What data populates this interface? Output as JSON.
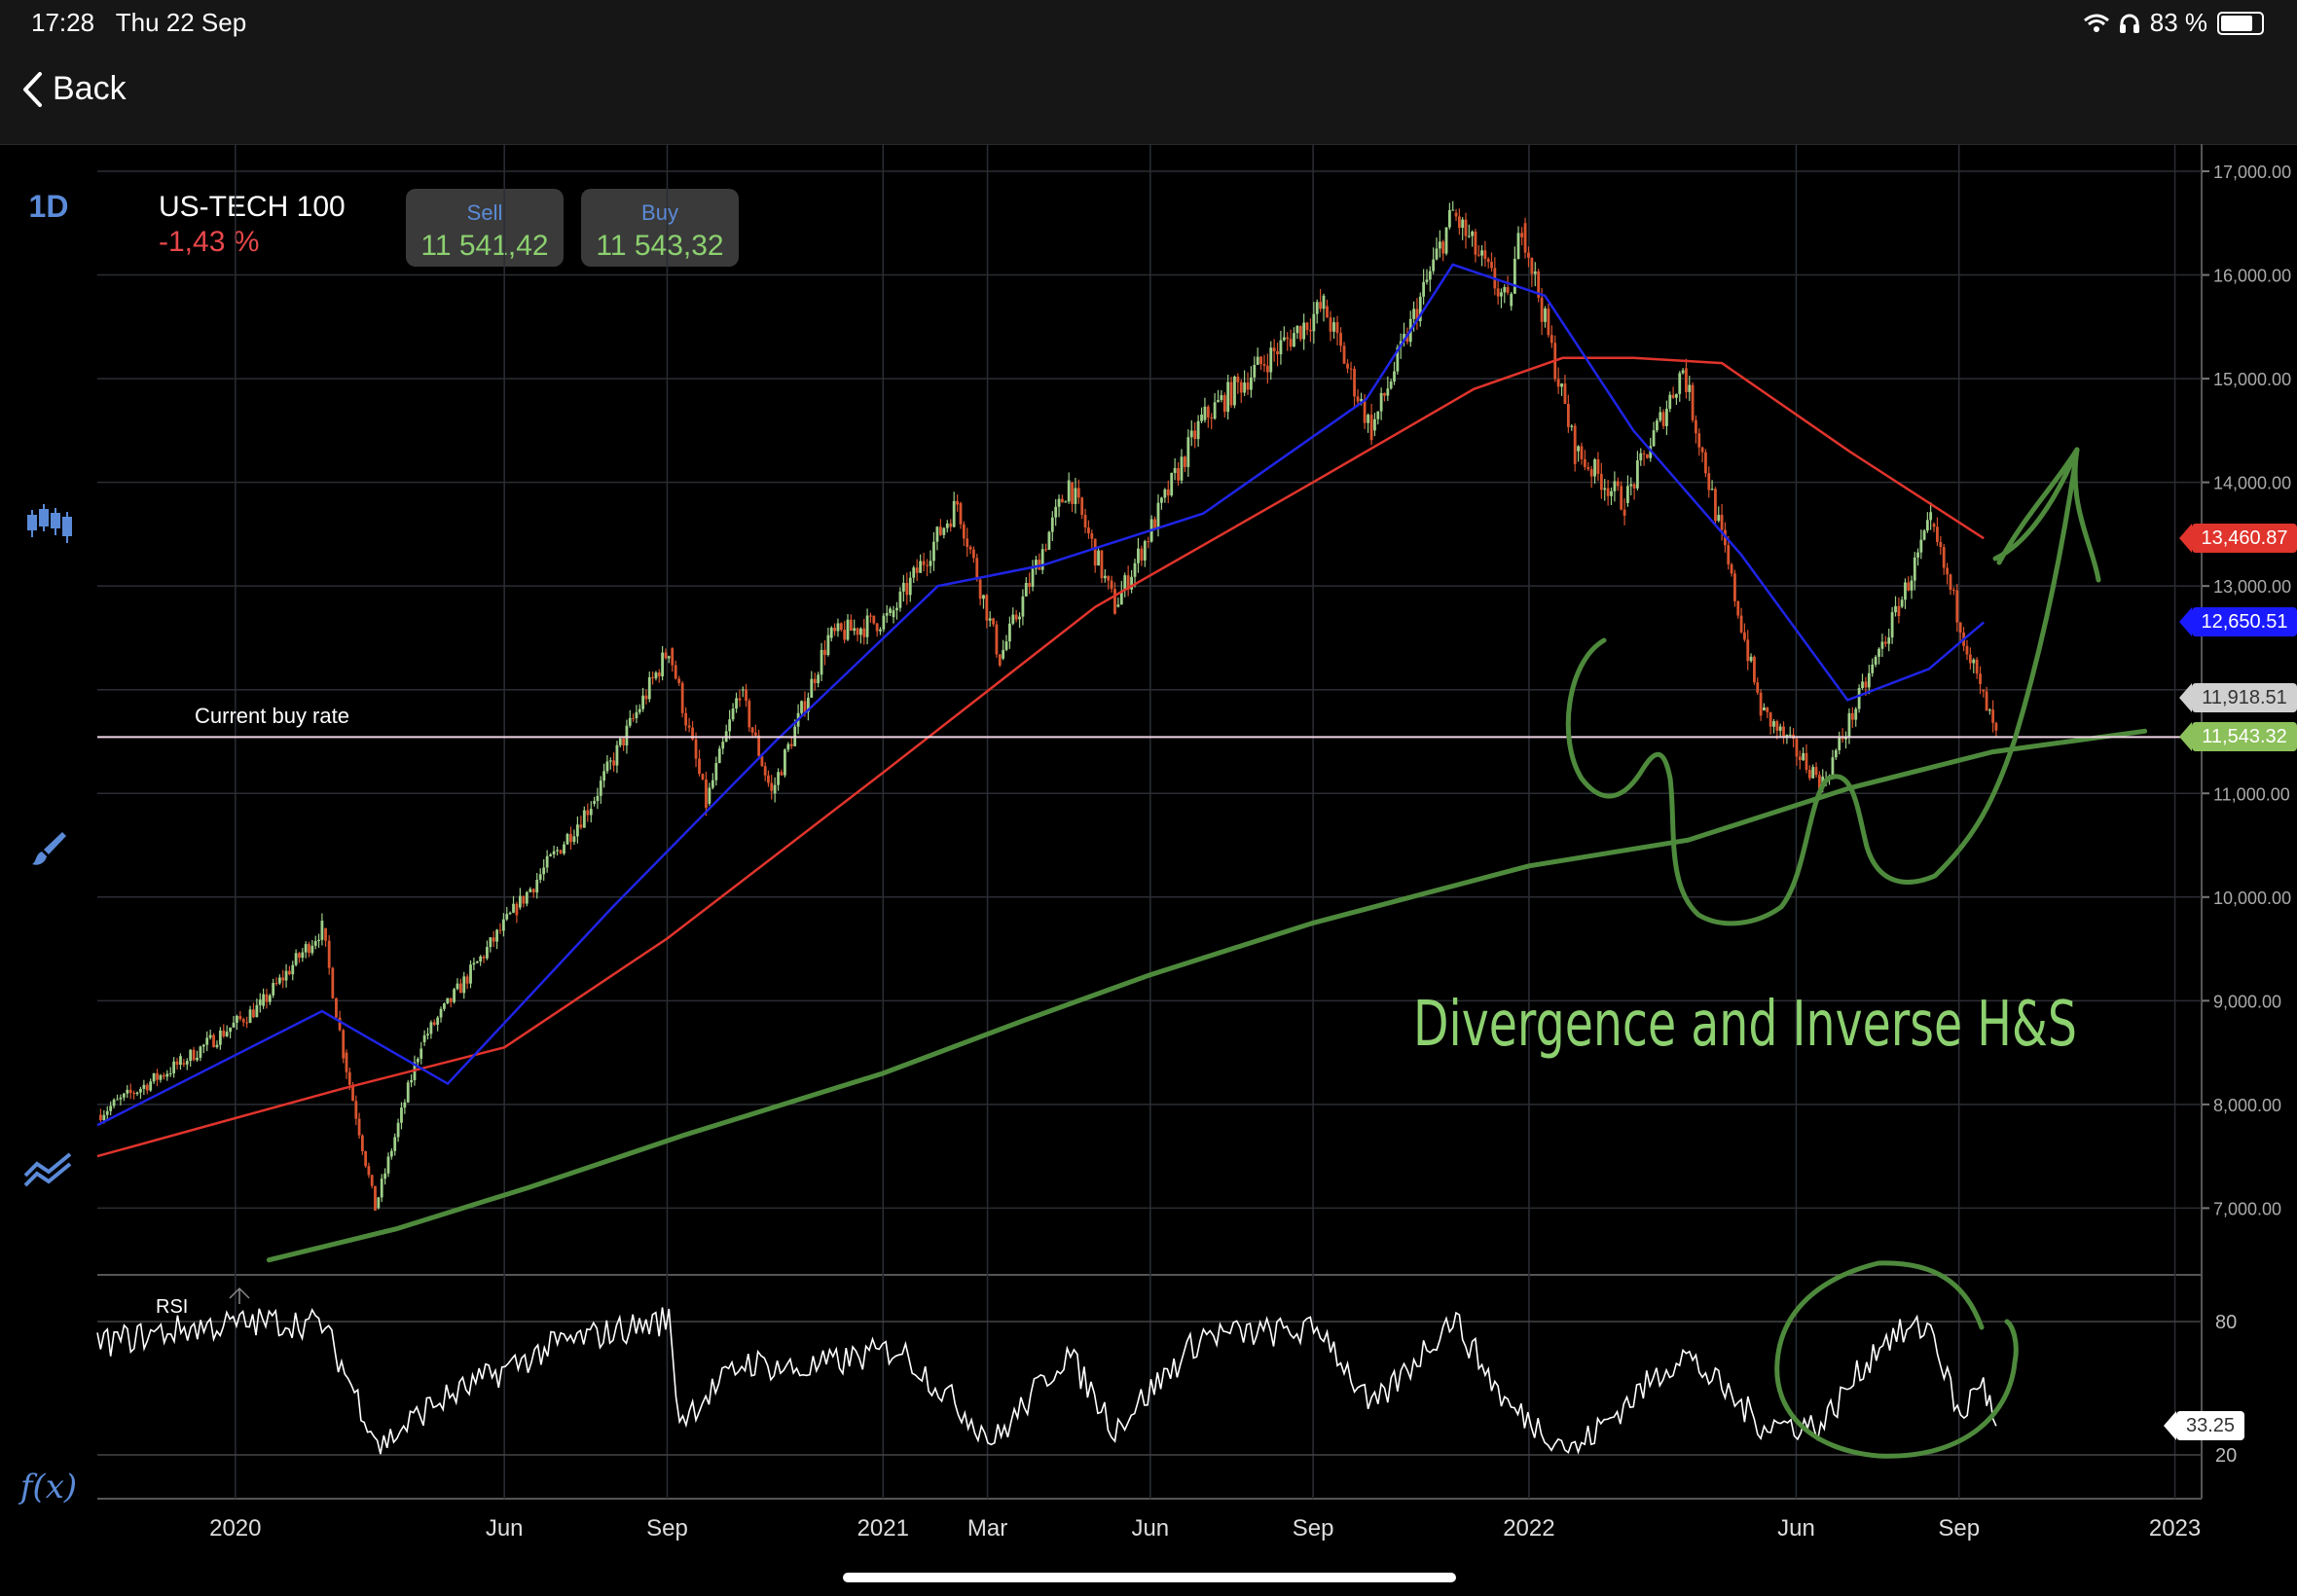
{
  "status": {
    "time": "17:28",
    "date": "Thu 22 Sep",
    "battery": "83 %",
    "battery_level": 0.83
  },
  "nav": {
    "back_label": "Back"
  },
  "timeframe": "1D",
  "fx_label": "f(x)",
  "instrument": {
    "name": "US-TECH 100",
    "change": "-1,43 %"
  },
  "sell": {
    "label": "Sell",
    "value": "11 541,42"
  },
  "buy": {
    "label": "Buy",
    "value": "11 543,32"
  },
  "current_rate_label": "Current buy rate",
  "annotation_text": "Divergence and Inverse H&S",
  "rsi_label": "RSI",
  "price_tags": [
    {
      "value": "13,460.87",
      "price": 13460.87,
      "bg": "#e0342c",
      "fg": "#ffffff"
    },
    {
      "value": "12,650.51",
      "price": 12650.51,
      "bg": "#1a1aff",
      "fg": "#ffffff"
    },
    {
      "value": "11,918.51",
      "price": 11918.51,
      "bg": "#d0d0d0",
      "fg": "#333333"
    },
    {
      "value": "11,543.32",
      "price": 11543.32,
      "bg": "#8cc05a",
      "fg": "#ffffff"
    }
  ],
  "rsi_tag": {
    "value": "33.25",
    "rsi": 33.25
  },
  "colors": {
    "up": "#9fd08a",
    "down": "#d9542e",
    "ma_fast": "#1f24e6",
    "ma_mid": "#e0342c",
    "ma_slow": "#4e8a3c",
    "drawing": "#4e8a3c",
    "current_line": "#f2d6e6",
    "accent": "#5b8bd8"
  },
  "chart_data": {
    "type": "line",
    "instrument": "US-TECH 100",
    "price_axis": {
      "ylim": [
        6300,
        17000
      ],
      "ticks": [
        17000,
        16000,
        15000,
        14000,
        13000,
        12000,
        11000,
        10000,
        9000,
        8000,
        7000
      ],
      "tick_labels": [
        "17,000.00",
        "16,000.00",
        "15,000.00",
        "14,000.00",
        "13,000.00",
        "12,000.00",
        "11,000.00",
        "10,000.00",
        "9,000.00",
        "8,000.00",
        "7,000.00"
      ]
    },
    "x_ticks": [
      "2020",
      "Jun",
      "Sep",
      "2021",
      "Mar",
      "Jun",
      "Sep",
      "2022",
      "Jun",
      "Sep",
      "2023"
    ],
    "x_tick_dates": [
      "2020-01-01",
      "2020-06-01",
      "2020-09-01",
      "2021-01-01",
      "2021-03-01",
      "2021-06-01",
      "2021-09-01",
      "2022-01-01",
      "2022-06-01",
      "2022-09-01",
      "2023-01-01"
    ],
    "x_range": [
      "2019-10-15",
      "2023-01-15"
    ],
    "price_series": {
      "name": "US-TECH 100",
      "x": [
        "2019-10-15",
        "2019-12-01",
        "2020-01-15",
        "2020-02-19",
        "2020-03-02",
        "2020-03-20",
        "2020-04-15",
        "2020-06-08",
        "2020-07-20",
        "2020-09-02",
        "2020-09-23",
        "2020-10-12",
        "2020-10-30",
        "2020-12-01",
        "2021-01-05",
        "2021-02-12",
        "2021-03-08",
        "2021-04-16",
        "2021-05-12",
        "2021-06-30",
        "2021-09-07",
        "2021-10-04",
        "2021-11-19",
        "2021-12-20",
        "2021-12-28",
        "2022-01-27",
        "2022-02-24",
        "2022-03-29",
        "2022-05-12",
        "2022-06-16",
        "2022-07-29",
        "2022-08-16",
        "2022-09-13",
        "2022-09-22"
      ],
      "close": [
        7900,
        8400,
        8950,
        9700,
        8500,
        7000,
        8600,
        9900,
        10900,
        12400,
        10900,
        12000,
        11000,
        12500,
        12700,
        13800,
        12300,
        14000,
        12800,
        14600,
        15700,
        14500,
        16600,
        15700,
        16500,
        14300,
        13800,
        15100,
        11800,
        11100,
        12800,
        13600,
        12000,
        11543
      ]
    },
    "ma_fast": {
      "x": [
        "2019-10-15",
        "2020-02-19",
        "2020-04-30",
        "2020-08-01",
        "2020-11-01",
        "2021-02-01",
        "2021-04-01",
        "2021-07-01",
        "2021-10-01",
        "2021-11-19",
        "2022-01-10",
        "2022-03-01",
        "2022-05-01",
        "2022-06-30",
        "2022-08-15",
        "2022-09-15"
      ],
      "values": [
        7800,
        8900,
        8200,
        9900,
        11500,
        13000,
        13200,
        13700,
        14800,
        16100,
        15800,
        14500,
        13300,
        11900,
        12200,
        12650
      ]
    },
    "ma_mid": {
      "x": [
        "2019-10-15",
        "2020-03-01",
        "2020-06-01",
        "2020-09-01",
        "2021-01-01",
        "2021-05-01",
        "2021-09-01",
        "2021-12-01",
        "2022-01-20",
        "2022-03-01",
        "2022-04-20",
        "2022-07-01",
        "2022-09-15"
      ],
      "values": [
        7500,
        8150,
        8550,
        9600,
        11200,
        12800,
        14000,
        14900,
        15200,
        15200,
        15150,
        14300,
        13460
      ]
    },
    "ma_slow": {
      "x": [
        "2020-01-20",
        "2020-04-01",
        "2020-06-15",
        "2020-09-10",
        "2021-01-01",
        "2021-03-20",
        "2021-06-01",
        "2021-09-01",
        "2022-01-01",
        "2022-04-01",
        "2022-07-01",
        "2022-09-20",
        "2022-12-15"
      ],
      "values": [
        6500,
        6800,
        7200,
        7700,
        8300,
        8800,
        9250,
        9750,
        10300,
        10550,
        11050,
        11400,
        11600
      ]
    },
    "rsi": {
      "ylim": [
        0,
        100
      ],
      "ticks": [
        80,
        20
      ],
      "x": [
        "2019-10-15",
        "2019-12-05",
        "2020-01-20",
        "2020-02-19",
        "2020-03-23",
        "2020-04-20",
        "2020-07-01",
        "2020-09-02",
        "2020-09-08",
        "2020-10-15",
        "2020-11-15",
        "2021-01-10",
        "2021-03-05",
        "2021-04-15",
        "2021-05-12",
        "2021-07-01",
        "2021-09-07",
        "2021-10-04",
        "2021-11-19",
        "2021-12-20",
        "2022-01-27",
        "2022-03-01",
        "2022-03-29",
        "2022-05-12",
        "2022-06-15",
        "2022-07-20",
        "2022-08-16",
        "2022-09-02",
        "2022-09-13",
        "2022-09-22"
      ],
      "values": [
        70,
        77,
        80,
        79,
        24,
        42,
        70,
        81,
        36,
        62,
        58,
        68,
        26,
        66,
        32,
        74,
        76,
        40,
        82,
        42,
        22,
        46,
        66,
        34,
        33,
        72,
        78,
        35,
        55,
        33
      ]
    },
    "current_buy_rate": 11543.32
  }
}
